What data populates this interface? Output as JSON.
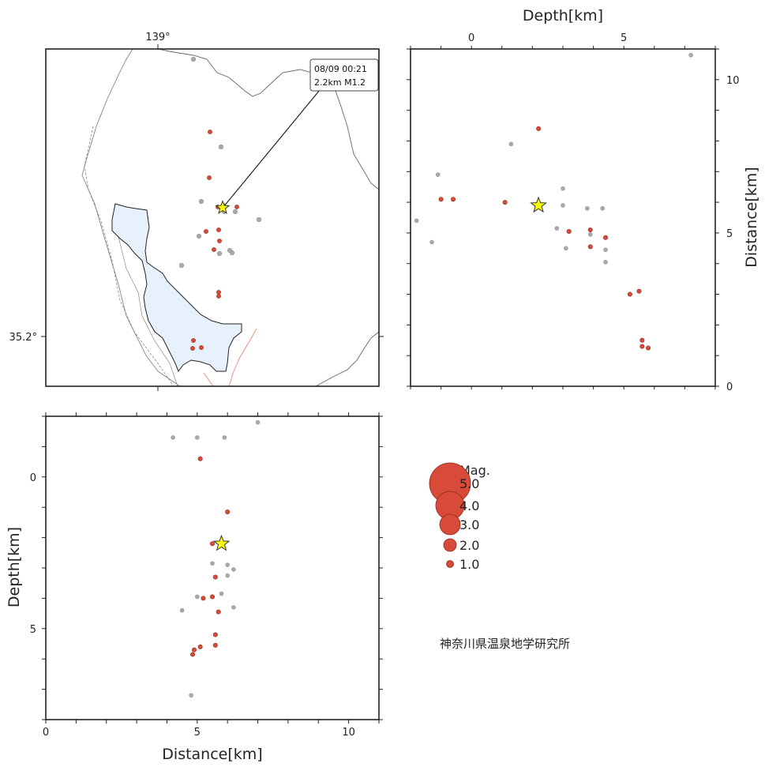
{
  "chart_data": [
    {
      "type": "map",
      "panel": "epicenter-map",
      "xlabel": "",
      "ylabel": "",
      "x_tick_label": "139°",
      "y_tick_label": "35.2°",
      "event_callout": {
        "line1": "08/09 00:21",
        "line2": "2.2km M1.2"
      }
    },
    {
      "type": "scatter",
      "panel": "depth-vs-distance-right",
      "xlabel": "Depth[km]",
      "ylabel": "Distance[km]",
      "x_ticks": [
        "0",
        "5"
      ],
      "y_ticks": [
        "0",
        "5",
        "10"
      ],
      "xlim": [
        -2,
        8
      ],
      "ylim": [
        0,
        11
      ],
      "points_recent": [
        [
          1.1,
          6.0
        ],
        [
          2.2,
          8.4
        ],
        [
          3.2,
          5.05
        ],
        [
          3.9,
          5.1
        ],
        [
          4.4,
          4.85
        ],
        [
          3.9,
          4.55
        ],
        [
          5.2,
          3.0
        ],
        [
          5.5,
          3.1
        ],
        [
          5.6,
          1.5
        ],
        [
          5.6,
          1.3
        ],
        [
          5.8,
          1.25
        ],
        [
          -0.6,
          6.1
        ],
        [
          -1.0,
          6.1
        ]
      ],
      "points_past": [
        [
          7.2,
          10.8
        ],
        [
          3.8,
          5.8
        ],
        [
          2.8,
          5.15
        ],
        [
          3.1,
          4.5
        ],
        [
          4.4,
          4.45
        ],
        [
          3.9,
          4.95
        ],
        [
          1.3,
          7.9
        ],
        [
          3.0,
          6.45
        ],
        [
          4.3,
          5.8
        ],
        [
          3.0,
          5.9
        ],
        [
          -1.3,
          4.7
        ],
        [
          4.4,
          4.05
        ],
        [
          -1.8,
          5.4
        ],
        [
          -1.1,
          6.9
        ]
      ],
      "latest_event": [
        2.2,
        5.9
      ]
    },
    {
      "type": "scatter",
      "panel": "distance-vs-depth-bottom",
      "xlabel": "Distance[km]",
      "ylabel": "Depth[km]",
      "x_ticks": [
        "0",
        "5",
        "10"
      ],
      "y_ticks": [
        "0",
        "5"
      ],
      "xlim": [
        0,
        11
      ],
      "ylim": [
        -2,
        8
      ],
      "points_recent": [
        [
          6.0,
          1.15
        ],
        [
          5.5,
          2.2
        ],
        [
          5.6,
          3.3
        ],
        [
          5.5,
          3.95
        ],
        [
          5.2,
          4.0
        ],
        [
          5.7,
          4.45
        ],
        [
          5.6,
          5.2
        ],
        [
          5.6,
          5.55
        ],
        [
          5.1,
          5.6
        ],
        [
          4.9,
          5.7
        ],
        [
          4.85,
          5.85
        ],
        [
          5.1,
          -0.6
        ]
      ],
      "points_past": [
        [
          5.8,
          3.85
        ],
        [
          5.5,
          2.85
        ],
        [
          6.0,
          2.9
        ],
        [
          6.2,
          3.05
        ],
        [
          6.0,
          3.25
        ],
        [
          5.0,
          3.95
        ],
        [
          6.2,
          4.3
        ],
        [
          4.5,
          4.4
        ],
        [
          4.8,
          7.2
        ],
        [
          4.2,
          -1.3
        ],
        [
          5.9,
          -1.3
        ],
        [
          7.0,
          -1.8
        ],
        [
          5.0,
          -1.3
        ]
      ],
      "latest_event": [
        5.8,
        2.2
      ]
    }
  ],
  "legend": {
    "title": "Mag.",
    "entries": [
      {
        "label": "5.0",
        "mag": 5
      },
      {
        "label": "4.0",
        "mag": 4
      },
      {
        "label": "3.0",
        "mag": 3
      },
      {
        "label": "2.0",
        "mag": 2
      },
      {
        "label": "1.0",
        "mag": 1
      }
    ]
  },
  "credit": "神奈川県温泉地学研究所",
  "colors": {
    "recent": "#d94a38",
    "past": "#a9a9a9",
    "star": "#ffff00",
    "lake_fill": "#e6f1fc",
    "fault_line": "#e78a7a"
  }
}
